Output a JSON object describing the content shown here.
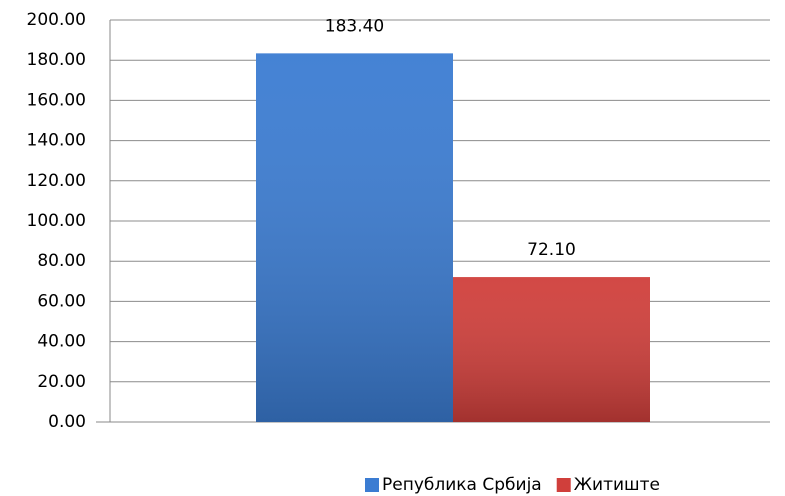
{
  "chart_data": {
    "type": "bar",
    "categories": [
      null
    ],
    "series": [
      {
        "name": "Република Србија",
        "color": "#3b7cd2",
        "values": [
          183.4
        ],
        "value_labels": [
          "183.40"
        ]
      },
      {
        "name": "Житиште",
        "color": "#d03f3b",
        "values": [
          72.1
        ],
        "value_labels": [
          "72.10"
        ]
      }
    ],
    "ylim": [
      0,
      200
    ],
    "yticks": [
      {
        "value": 0,
        "label": "0.00"
      },
      {
        "value": 20,
        "label": "20.00"
      },
      {
        "value": 40,
        "label": "40.00"
      },
      {
        "value": 60,
        "label": "60.00"
      },
      {
        "value": 80,
        "label": "80.00"
      },
      {
        "value": 100,
        "label": "100.00"
      },
      {
        "value": 120,
        "label": "120.00"
      },
      {
        "value": 140,
        "label": "140.00"
      },
      {
        "value": 160,
        "label": "160.00"
      },
      {
        "value": 180,
        "label": "180.00"
      },
      {
        "value": 200,
        "label": "200.00"
      }
    ],
    "grid": true,
    "legend": "bottom"
  }
}
